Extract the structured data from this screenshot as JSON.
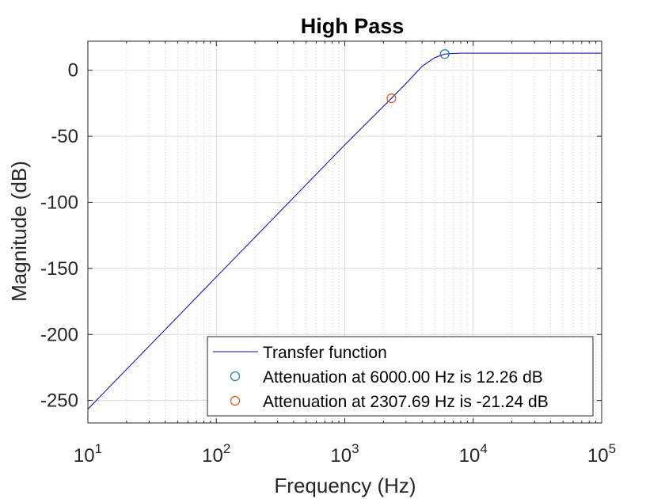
{
  "chart_data": {
    "type": "line",
    "title": "High Pass",
    "xlabel": "Frequency (Hz)",
    "ylabel": "Magnitude (dB)",
    "xscale": "log",
    "xlim": [
      10,
      100000
    ],
    "ylim": [
      -267,
      22
    ],
    "grid": true,
    "x_ticks": [
      {
        "value": 10,
        "base": "10",
        "exp": "1"
      },
      {
        "value": 100,
        "base": "10",
        "exp": "2"
      },
      {
        "value": 1000,
        "base": "10",
        "exp": "3"
      },
      {
        "value": 10000,
        "base": "10",
        "exp": "4"
      },
      {
        "value": 100000,
        "base": "10",
        "exp": "5"
      }
    ],
    "y_ticks": [
      {
        "value": 0,
        "label": "0"
      },
      {
        "value": -50,
        "label": "-50"
      },
      {
        "value": -100,
        "label": "-100"
      },
      {
        "value": -150,
        "label": "-150"
      },
      {
        "value": -200,
        "label": "-200"
      },
      {
        "value": -250,
        "label": "-250"
      }
    ],
    "series": [
      {
        "name": "Transfer function",
        "color": "#0000b4",
        "x": [
          10,
          100,
          1000,
          2307.69,
          3000,
          4000,
          5000,
          6000,
          7000,
          8000,
          10000,
          100000
        ],
        "y": [
          -256.5,
          -156.5,
          -56.5,
          -21.24,
          -10,
          3,
          9.5,
          12.26,
          12.8,
          12.9,
          12.9,
          12.9
        ]
      }
    ],
    "markers": [
      {
        "name": "Attenuation at 6000.00 Hz is 12.26 dB",
        "x": 6000,
        "y": 12.26,
        "color": "#1f77b4"
      },
      {
        "name": "Attenuation at 2307.69 Hz is -21.24 dB",
        "x": 2307.69,
        "y": -21.24,
        "color": "#d95319"
      }
    ],
    "legend": {
      "placement": "bottom-right",
      "entries": [
        "Transfer function",
        "Attenuation at 6000.00 Hz is 12.26 dB",
        "Attenuation at 2307.69 Hz is -21.24 dB"
      ]
    }
  }
}
